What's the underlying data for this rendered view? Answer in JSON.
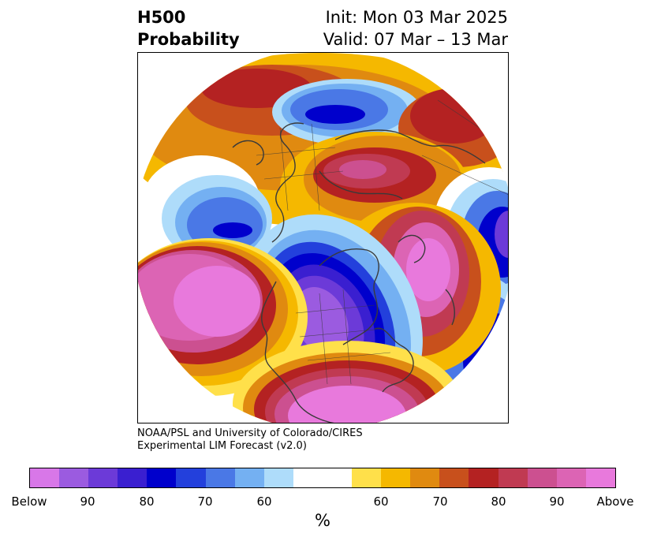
{
  "header": {
    "title_line1": "H500",
    "title_line2": "Probability",
    "init": "Init: Mon 03 Mar 2025",
    "valid": "Valid: 07 Mar – 13 Mar"
  },
  "credit": {
    "line1": "NOAA/PSL and University of Colorado/CIRES",
    "line2": "Experimental LIM Forecast (v2.0)"
  },
  "colorbar": {
    "colors": [
      "#d877e8",
      "#9b5be0",
      "#6c3ad8",
      "#3a1fd0",
      "#0000cc",
      "#2340dc",
      "#4a78e6",
      "#74b0f2",
      "#aedcfa",
      "#ffffff",
      "#ffffff",
      "#ffe04a",
      "#f5b800",
      "#e08a10",
      "#c8501c",
      "#b42222",
      "#c03a52",
      "#cc5090",
      "#dc64b4",
      "#e879dc"
    ],
    "tick_labels": [
      "Below",
      "90",
      "80",
      "70",
      "60",
      "60",
      "70",
      "80",
      "90",
      "Above"
    ],
    "unit": "%"
  },
  "map": {
    "colors": {
      "above_max": "#e879dc",
      "above_90": "#dc64b4",
      "above_85": "#cc5090",
      "above_80": "#c03a52",
      "above_75": "#b42222",
      "above_70": "#c8501c",
      "above_65": "#e08a10",
      "above_60": "#f5b800",
      "above_55": "#ffe04a",
      "below_55": "#aedcfa",
      "below_60": "#74b0f2",
      "below_65": "#4a78e6",
      "below_70": "#2340dc",
      "below_75": "#0000cc",
      "below_80": "#3a1fd0",
      "below_85": "#6c3ad8",
      "below_90": "#9b5be0",
      "coast": "#3a3a3a"
    }
  }
}
